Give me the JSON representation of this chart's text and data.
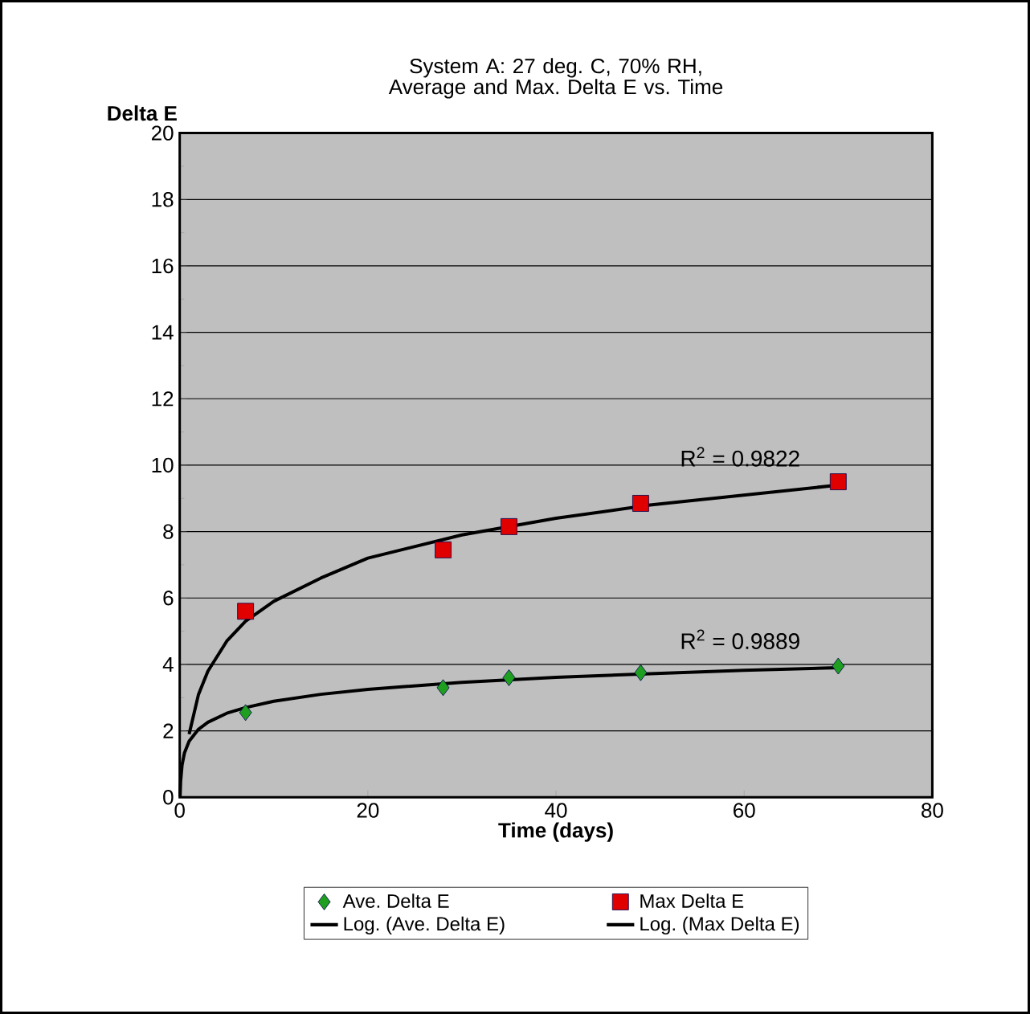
{
  "chart_data": {
    "type": "scatter",
    "title": "System A: 27 deg. C, 70% RH, Average and Max. Delta E vs. Time",
    "xlabel": "Time (days)",
    "ylabel": "Delta E",
    "xlim": [
      0,
      80
    ],
    "ylim": [
      0,
      20
    ],
    "xticks": [
      0,
      20,
      40,
      60,
      80
    ],
    "yticks": [
      0,
      2,
      4,
      6,
      8,
      10,
      12,
      14,
      16,
      18,
      20
    ],
    "grid": "y",
    "legend": "bottom",
    "series": [
      {
        "name": "Ave. Delta E",
        "color": "#1f9f1f",
        "marker": "diamond",
        "x": [
          7,
          28,
          35,
          49,
          70
        ],
        "values": [
          2.55,
          3.3,
          3.6,
          3.75,
          3.95
        ]
      },
      {
        "name": "Max Delta E",
        "color": "#e00000",
        "marker": "square",
        "x": [
          7,
          28,
          35,
          49,
          70
        ],
        "values": [
          5.6,
          7.45,
          8.15,
          8.85,
          9.5
        ]
      },
      {
        "name": "Log. (Ave. Delta E)",
        "type": "line",
        "color": "#000000",
        "marker": "none",
        "line_style": "solid",
        "x": [
          0.04,
          0.1,
          0.25,
          0.5,
          1,
          2,
          3,
          5,
          7,
          10,
          15,
          20,
          30,
          40,
          50,
          60,
          70
        ],
        "values": [
          0.02,
          0.49,
          0.97,
          1.33,
          1.69,
          2.05,
          2.26,
          2.53,
          2.7,
          2.89,
          3.1,
          3.25,
          3.46,
          3.61,
          3.72,
          3.82,
          3.9
        ]
      },
      {
        "name": "Log. (Max Delta E)",
        "type": "line",
        "color": "#000000",
        "marker": "none",
        "line_style": "solid",
        "x": [
          1,
          2,
          3,
          5,
          7,
          10,
          15,
          20,
          30,
          40,
          50,
          60,
          70
        ],
        "values": [
          1.9,
          3.1,
          3.8,
          4.7,
          5.3,
          5.9,
          6.6,
          7.2,
          7.9,
          8.4,
          8.8,
          9.1,
          9.4
        ]
      }
    ],
    "annotations": [
      "R$^{2}$ = 0.9822",
      "R$^{2}$ = 0.9889"
    ]
  }
}
